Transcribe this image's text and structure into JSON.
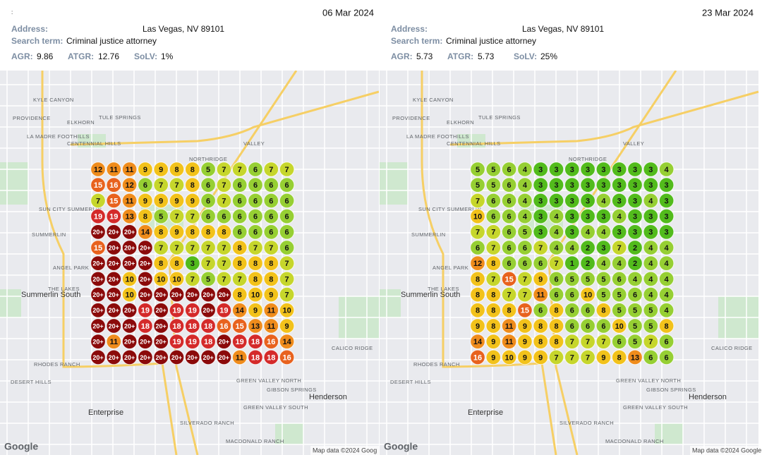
{
  "panels": [
    {
      "marker": ":",
      "date": "06 Mar 2024",
      "address_label": "Address:",
      "address": "Las Vegas, NV 89101",
      "search_label": "Search term:",
      "search": "Criminal justice attorney",
      "metrics": [
        {
          "label": "AGR:",
          "value": "9.86"
        },
        {
          "label": "ATGR:",
          "value": "12.76"
        },
        {
          "label": "SoLV:",
          "value": "1%"
        }
      ],
      "grid": [
        [
          12,
          11,
          11,
          9,
          9,
          8,
          8,
          5,
          7,
          7,
          6,
          7,
          7
        ],
        [
          15,
          16,
          12,
          6,
          7,
          7,
          8,
          6,
          7,
          6,
          6,
          6,
          6
        ],
        [
          7,
          15,
          11,
          9,
          9,
          9,
          9,
          6,
          7,
          6,
          6,
          6,
          6
        ],
        [
          19,
          19,
          13,
          8,
          5,
          7,
          7,
          6,
          6,
          6,
          6,
          6,
          6
        ],
        [
          "20+",
          "20+",
          "20+",
          14,
          8,
          9,
          8,
          8,
          8,
          6,
          6,
          6,
          6
        ],
        [
          15,
          "20+",
          "20+",
          "20+",
          7,
          7,
          7,
          7,
          7,
          8,
          7,
          7,
          6
        ],
        [
          "20+",
          "20+",
          "20+",
          "20+",
          8,
          8,
          3,
          7,
          7,
          8,
          8,
          8,
          7
        ],
        [
          "20+",
          "20+",
          10,
          "20+",
          10,
          10,
          7,
          5,
          7,
          7,
          8,
          8,
          7
        ],
        [
          "20+",
          "20+",
          10,
          "20+",
          "20+",
          "20+",
          "20+",
          "20+",
          "20+",
          8,
          10,
          9,
          7
        ],
        [
          "20+",
          "20+",
          "20+",
          19,
          "20+",
          19,
          19,
          "20+",
          19,
          14,
          9,
          11,
          10
        ],
        [
          "20+",
          "20+",
          "20+",
          18,
          "20+",
          18,
          18,
          18,
          16,
          15,
          13,
          11,
          9
        ],
        [
          "20+",
          11,
          "20+",
          "20+",
          "20+",
          19,
          19,
          18,
          "20+",
          19,
          18,
          16,
          14
        ],
        [
          "20+",
          "20+",
          "20+",
          "20+",
          "20+",
          "20+",
          "20+",
          "20+",
          "20+",
          11,
          18,
          18,
          16
        ]
      ],
      "attribution": "Map data ©2024 Goog",
      "logo": "Google"
    },
    {
      "date": "23 Mar 2024",
      "address_label": "Address:",
      "address": "Las Vegas, NV 89101",
      "search_label": "Search term:",
      "search": "Criminal justice attorney",
      "metrics": [
        {
          "label": "AGR:",
          "value": "5.73"
        },
        {
          "label": "ATGR:",
          "value": "5.73"
        },
        {
          "label": "SoLV:",
          "value": "25%"
        }
      ],
      "grid": [
        [
          5,
          5,
          6,
          4,
          3,
          3,
          3,
          3,
          3,
          3,
          3,
          3,
          4
        ],
        [
          5,
          5,
          6,
          4,
          3,
          3,
          3,
          3,
          3,
          3,
          3,
          3,
          3
        ],
        [
          7,
          6,
          6,
          4,
          3,
          3,
          3,
          3,
          4,
          3,
          3,
          4,
          3
        ],
        [
          10,
          6,
          6,
          4,
          3,
          4,
          3,
          3,
          3,
          4,
          3,
          3,
          3
        ],
        [
          7,
          7,
          6,
          5,
          3,
          4,
          3,
          4,
          4,
          3,
          3,
          3,
          3
        ],
        [
          6,
          7,
          6,
          6,
          7,
          4,
          4,
          2,
          3,
          7,
          2,
          4,
          4
        ],
        [
          12,
          8,
          6,
          6,
          6,
          7,
          1,
          2,
          4,
          4,
          2,
          4,
          4
        ],
        [
          8,
          7,
          15,
          7,
          9,
          6,
          5,
          5,
          5,
          6,
          4,
          4,
          4
        ],
        [
          8,
          8,
          7,
          7,
          11,
          6,
          6,
          10,
          5,
          5,
          6,
          4,
          4
        ],
        [
          8,
          8,
          8,
          15,
          6,
          8,
          6,
          6,
          8,
          5,
          5,
          5,
          4
        ],
        [
          9,
          8,
          11,
          9,
          8,
          8,
          6,
          6,
          6,
          10,
          5,
          5,
          8
        ],
        [
          14,
          9,
          11,
          9,
          8,
          8,
          7,
          7,
          7,
          6,
          5,
          7,
          6
        ],
        [
          16,
          9,
          10,
          9,
          9,
          7,
          7,
          7,
          9,
          8,
          13,
          6,
          6
        ]
      ],
      "attribution": "Map data ©2024 Google",
      "logo": "Google"
    }
  ],
  "map_labels": [
    "KYLE CANYON",
    "PROVIDENCE",
    "ELKHORN",
    "TULE SPRINGS",
    "LA MADRE FOOTHILLS",
    "CENTENNIAL HILLS",
    "VALLEY",
    "NORTHRIDGE",
    "SUN CITY SUMMERLIN",
    "SUMMERLIN",
    "ANGEL PARK",
    "THE LAKES",
    "Summerlin South",
    "RHODES RANCH",
    "DESERT HILLS",
    "CALICO RIDGE",
    "GREEN VALLEY NORTH",
    "GIBSON SPRINGS",
    "Henderson",
    "Enterprise",
    "SILVERADO RANCH",
    "GREEN VALLEY SOUTH",
    "MACDONALD RANCH"
  ]
}
